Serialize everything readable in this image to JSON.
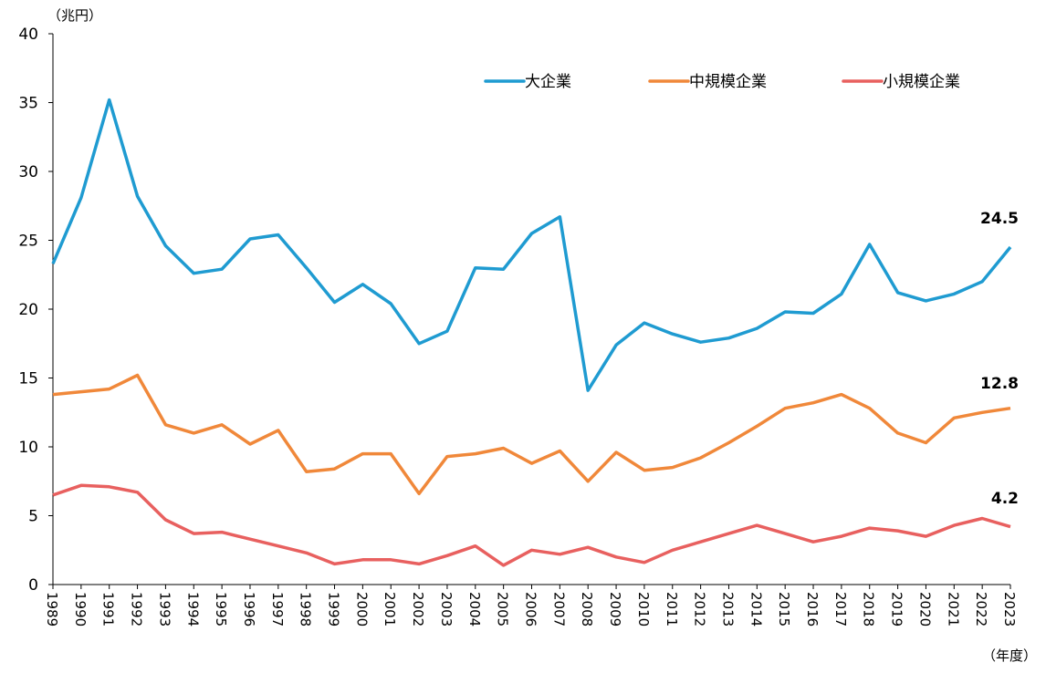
{
  "chart_data": {
    "type": "line",
    "yunit": "（兆円）",
    "xunit": "（年度）",
    "ylim": [
      0,
      40
    ],
    "yticks": [
      0,
      5,
      10,
      15,
      20,
      25,
      30,
      35,
      40
    ],
    "grid": false,
    "legend_position": "top-right",
    "x": [
      1989,
      1990,
      1991,
      1992,
      1993,
      1994,
      1995,
      1996,
      1997,
      1998,
      1999,
      2000,
      2001,
      2002,
      2003,
      2004,
      2005,
      2006,
      2007,
      2008,
      2009,
      2010,
      2011,
      2012,
      2013,
      2014,
      2015,
      2016,
      2017,
      2018,
      2019,
      2020,
      2021,
      2022,
      2023
    ],
    "series": [
      {
        "name": "大企業",
        "color": "#1f9bd1",
        "end_label": "24.5",
        "values": [
          23.3,
          28.1,
          35.2,
          28.2,
          24.6,
          22.6,
          22.9,
          25.1,
          25.4,
          23.0,
          20.5,
          21.8,
          20.4,
          17.5,
          18.4,
          23.0,
          22.9,
          25.5,
          26.7,
          14.1,
          17.4,
          19.0,
          18.2,
          17.6,
          17.9,
          18.6,
          19.8,
          19.7,
          21.1,
          24.7,
          21.2,
          20.6,
          21.1,
          22.0,
          24.5
        ]
      },
      {
        "name": "中規模企業",
        "color": "#f0883a",
        "end_label": "12.8",
        "values": [
          13.8,
          14.0,
          14.2,
          15.2,
          11.6,
          11.0,
          11.6,
          10.2,
          11.2,
          8.2,
          8.4,
          9.5,
          9.5,
          6.6,
          9.3,
          9.5,
          9.9,
          8.8,
          9.7,
          7.5,
          9.6,
          8.3,
          8.5,
          9.2,
          10.3,
          11.5,
          12.8,
          13.2,
          13.8,
          12.8,
          11.0,
          10.3,
          12.1,
          12.5,
          12.8
        ]
      },
      {
        "name": "小規模企業",
        "color": "#e8605f",
        "end_label": "4.2",
        "values": [
          6.5,
          7.2,
          7.1,
          6.7,
          4.7,
          3.7,
          3.8,
          3.3,
          2.8,
          2.3,
          1.5,
          1.8,
          1.8,
          1.5,
          2.1,
          2.8,
          1.4,
          2.5,
          2.2,
          2.7,
          2.0,
          1.6,
          2.5,
          3.1,
          3.7,
          4.3,
          3.7,
          3.1,
          3.5,
          4.1,
          3.9,
          3.5,
          4.3,
          4.8,
          4.2
        ]
      }
    ]
  }
}
